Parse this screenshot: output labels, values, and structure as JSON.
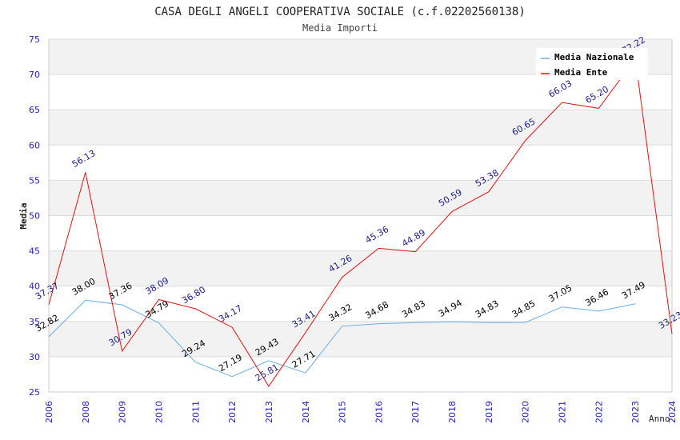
{
  "chart_data": {
    "type": "line",
    "title": "CASA DEGLI ANGELI COOPERATIVA SOCIALE (c.f.02202560138)",
    "subtitle": "Media Importi",
    "xlabel": "Anno",
    "ylabel": "Media",
    "ylim": [
      25,
      75
    ],
    "yticks": [
      "25",
      "30",
      "35",
      "40",
      "45",
      "50",
      "55",
      "60",
      "65",
      "70",
      "75"
    ],
    "categories": [
      "2006",
      "2008",
      "2009",
      "2010",
      "2011",
      "2012",
      "2013",
      "2014",
      "2015",
      "2016",
      "2017",
      "2018",
      "2019",
      "2020",
      "2021",
      "2022",
      "2023",
      "2024"
    ],
    "legend_position": "top-right",
    "series": [
      {
        "name": "Media Nazionale",
        "color": "#6aaee8",
        "label_color": "#000000",
        "values": [
          32.82,
          38.0,
          37.36,
          34.79,
          29.24,
          27.19,
          29.43,
          27.71,
          34.32,
          34.68,
          34.83,
          34.94,
          34.83,
          34.85,
          37.05,
          36.46,
          37.49,
          null
        ],
        "labels": [
          "32.82",
          "38.00",
          "37.36",
          "34.79",
          "29.24",
          "27.19",
          "29.43",
          "27.71",
          "34.32",
          "34.68",
          "34.83",
          "34.94",
          "34.83",
          "34.85",
          "37.05",
          "36.46",
          "37.49",
          null
        ]
      },
      {
        "name": "Media Ente",
        "color": "#e81010",
        "label_color": "#1a1a8c",
        "values": [
          37.37,
          56.13,
          30.79,
          38.09,
          36.8,
          34.17,
          25.81,
          33.41,
          41.26,
          45.36,
          44.89,
          50.59,
          53.38,
          60.65,
          66.03,
          65.2,
          72.22,
          33.23
        ],
        "labels": [
          "37.37",
          "56.13",
          "30.79",
          "38.09",
          "36.80",
          "34.17",
          "25.81",
          "33.41",
          "41.26",
          "45.36",
          "44.89",
          "50.59",
          "53.38",
          "60.65",
          "66.03",
          "65.20",
          "72.22",
          "33.23"
        ]
      }
    ],
    "colors": {
      "axis_text": "#1f1fbf",
      "band": "#f2f2f2",
      "grid": "#dddddd"
    }
  }
}
